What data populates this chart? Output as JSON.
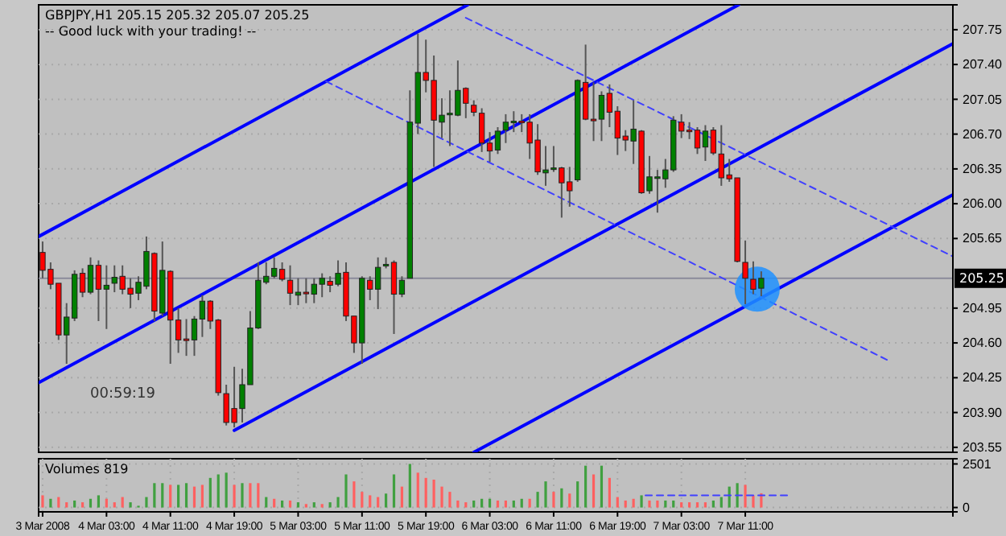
{
  "chart_data": [
    {
      "type": "candlestick",
      "title": "GBPJPY,H1  205.15 205.32 205.07 205.25",
      "subtitle": "-- Good luck with your trading! --",
      "annotations": [
        "00:59:19"
      ],
      "x": [
        "2008-03-03T19:00",
        "2008-03-03T20:00",
        "2008-03-03T21:00",
        "2008-03-03T22:00",
        "2008-03-03T23:00",
        "2008-03-04T00:00",
        "2008-03-04T01:00",
        "2008-03-04T02:00",
        "2008-03-04T03:00",
        "2008-03-04T04:00",
        "2008-03-04T05:00",
        "2008-03-04T06:00",
        "2008-03-04T07:00",
        "2008-03-04T08:00",
        "2008-03-04T09:00",
        "2008-03-04T10:00",
        "2008-03-04T11:00",
        "2008-03-04T12:00",
        "2008-03-04T13:00",
        "2008-03-04T14:00",
        "2008-03-04T15:00",
        "2008-03-04T16:00",
        "2008-03-04T17:00",
        "2008-03-04T18:00",
        "2008-03-04T19:00",
        "2008-03-04T20:00",
        "2008-03-04T21:00",
        "2008-03-04T22:00",
        "2008-03-04T23:00",
        "2008-03-05T00:00",
        "2008-03-05T01:00",
        "2008-03-05T02:00",
        "2008-03-05T03:00",
        "2008-03-05T04:00",
        "2008-03-05T05:00",
        "2008-03-05T06:00",
        "2008-03-05T07:00",
        "2008-03-05T08:00",
        "2008-03-05T09:00",
        "2008-03-05T10:00",
        "2008-03-05T11:00",
        "2008-03-05T12:00",
        "2008-03-05T13:00",
        "2008-03-05T14:00",
        "2008-03-05T15:00",
        "2008-03-05T16:00",
        "2008-03-05T17:00",
        "2008-03-05T18:00",
        "2008-03-05T19:00",
        "2008-03-05T20:00",
        "2008-03-05T21:00",
        "2008-03-05T22:00",
        "2008-03-05T23:00",
        "2008-03-06T00:00",
        "2008-03-06T01:00",
        "2008-03-06T02:00",
        "2008-03-06T03:00",
        "2008-03-06T04:00",
        "2008-03-06T05:00",
        "2008-03-06T06:00",
        "2008-03-06T07:00",
        "2008-03-06T08:00",
        "2008-03-06T09:00",
        "2008-03-06T10:00",
        "2008-03-06T11:00",
        "2008-03-06T12:00",
        "2008-03-06T13:00",
        "2008-03-06T14:00",
        "2008-03-06T15:00",
        "2008-03-06T16:00",
        "2008-03-06T17:00",
        "2008-03-06T18:00",
        "2008-03-06T19:00",
        "2008-03-06T20:00",
        "2008-03-06T21:00",
        "2008-03-06T22:00",
        "2008-03-06T23:00",
        "2008-03-07T00:00",
        "2008-03-07T01:00",
        "2008-03-07T02:00",
        "2008-03-07T03:00",
        "2008-03-07T04:00",
        "2008-03-07T05:00",
        "2008-03-07T06:00",
        "2008-03-07T07:00",
        "2008-03-07T08:00",
        "2008-03-07T09:00",
        "2008-03-07T10:00",
        "2008-03-07T11:00",
        "2008-03-07T12:00",
        "2008-03-07T13:00"
      ],
      "ohlc": [
        [
          205.51,
          205.62,
          205.25,
          205.33
        ],
        [
          205.34,
          205.41,
          205.14,
          205.19
        ],
        [
          205.2,
          205.2,
          204.63,
          204.68
        ],
        [
          204.68,
          205.0,
          204.39,
          204.86
        ],
        [
          204.85,
          205.33,
          204.82,
          205.29
        ],
        [
          205.3,
          205.35,
          205.06,
          205.11
        ],
        [
          205.11,
          205.46,
          205.09,
          205.38
        ],
        [
          205.38,
          205.43,
          204.82,
          205.14
        ],
        [
          205.14,
          205.38,
          204.74,
          205.18
        ],
        [
          205.2,
          205.38,
          205.11,
          205.26
        ],
        [
          205.27,
          205.38,
          205.09,
          205.14
        ],
        [
          205.15,
          205.25,
          204.95,
          205.09
        ],
        [
          205.1,
          205.27,
          205.03,
          205.21
        ],
        [
          205.17,
          205.67,
          205.14,
          205.52
        ],
        [
          205.5,
          205.51,
          204.82,
          204.92
        ],
        [
          204.9,
          205.62,
          204.87,
          205.33
        ],
        [
          205.32,
          205.33,
          204.39,
          204.83
        ],
        [
          204.83,
          204.95,
          204.5,
          204.63
        ],
        [
          204.64,
          204.84,
          204.47,
          204.63
        ],
        [
          204.63,
          204.87,
          204.47,
          204.84
        ],
        [
          204.84,
          205.08,
          204.66,
          205.02
        ],
        [
          205.02,
          205.03,
          204.74,
          204.82
        ],
        [
          204.83,
          204.84,
          204.07,
          204.1
        ],
        [
          204.09,
          204.18,
          203.77,
          203.8
        ],
        [
          203.94,
          204.36,
          203.75,
          203.8
        ],
        [
          203.94,
          204.34,
          203.8,
          204.18
        ],
        [
          204.18,
          204.92,
          204.18,
          204.75
        ],
        [
          204.75,
          205.41,
          204.74,
          205.23
        ],
        [
          205.21,
          205.41,
          205.19,
          205.27
        ],
        [
          205.27,
          205.46,
          205.25,
          205.35
        ],
        [
          205.34,
          205.41,
          205.22,
          205.24
        ],
        [
          205.23,
          205.38,
          204.98,
          205.1
        ],
        [
          205.08,
          205.25,
          204.98,
          205.11
        ],
        [
          205.11,
          205.25,
          205.0,
          205.1
        ],
        [
          205.09,
          205.25,
          205.0,
          205.19
        ],
        [
          205.19,
          205.3,
          205.06,
          205.25
        ],
        [
          205.22,
          205.27,
          205.11,
          205.18
        ],
        [
          205.19,
          205.43,
          205.17,
          205.3
        ],
        [
          205.31,
          205.41,
          204.82,
          204.87
        ],
        [
          204.87,
          204.87,
          204.5,
          204.6
        ],
        [
          204.6,
          205.27,
          204.39,
          205.25
        ],
        [
          205.23,
          205.27,
          205.03,
          205.14
        ],
        [
          205.14,
          205.46,
          204.94,
          205.36
        ],
        [
          205.38,
          205.46,
          205.35,
          205.39
        ],
        [
          205.41,
          205.43,
          204.69,
          205.09
        ],
        [
          205.09,
          205.27,
          205.06,
          205.23
        ],
        [
          205.25,
          207.14,
          205.25,
          206.82
        ],
        [
          206.81,
          207.71,
          206.7,
          207.32
        ],
        [
          207.32,
          207.65,
          207.12,
          207.24
        ],
        [
          207.24,
          207.49,
          206.37,
          206.84
        ],
        [
          206.82,
          207.06,
          206.66,
          206.89
        ],
        [
          206.9,
          207.14,
          206.58,
          206.91
        ],
        [
          206.89,
          207.44,
          206.88,
          207.14
        ],
        [
          207.16,
          207.17,
          206.86,
          207.01
        ],
        [
          206.99,
          207.04,
          206.88,
          206.92
        ],
        [
          206.91,
          206.96,
          206.52,
          206.61
        ],
        [
          206.61,
          206.72,
          206.42,
          206.53
        ],
        [
          206.54,
          206.77,
          206.5,
          206.73
        ],
        [
          206.74,
          206.9,
          206.61,
          206.82
        ],
        [
          206.82,
          206.93,
          206.72,
          206.83
        ],
        [
          206.83,
          206.9,
          206.72,
          206.82
        ],
        [
          206.82,
          206.9,
          206.45,
          206.61
        ],
        [
          206.64,
          206.8,
          206.29,
          206.32
        ],
        [
          206.31,
          206.58,
          206.18,
          206.34
        ],
        [
          206.35,
          206.58,
          206.32,
          206.36
        ],
        [
          206.36,
          206.37,
          205.86,
          206.21
        ],
        [
          206.22,
          206.37,
          205.97,
          206.13
        ],
        [
          206.24,
          207.25,
          206.22,
          207.24
        ],
        [
          207.22,
          207.6,
          206.84,
          206.85
        ],
        [
          206.85,
          207.22,
          206.63,
          206.84
        ],
        [
          206.85,
          207.13,
          206.63,
          207.09
        ],
        [
          207.11,
          207.2,
          206.77,
          206.92
        ],
        [
          206.93,
          206.98,
          206.49,
          206.66
        ],
        [
          206.68,
          206.74,
          206.53,
          206.64
        ],
        [
          206.63,
          207.04,
          206.4,
          206.75
        ],
        [
          206.73,
          206.74,
          206.1,
          206.11
        ],
        [
          206.13,
          206.48,
          206.1,
          206.27
        ],
        [
          206.26,
          206.34,
          205.91,
          206.27
        ],
        [
          206.25,
          206.45,
          206.16,
          206.34
        ],
        [
          206.34,
          206.88,
          206.32,
          206.84
        ],
        [
          206.82,
          206.9,
          206.66,
          206.73
        ],
        [
          206.74,
          206.82,
          206.65,
          206.73
        ],
        [
          206.74,
          206.77,
          206.5,
          206.56
        ],
        [
          206.57,
          206.79,
          206.43,
          206.73
        ],
        [
          206.74,
          206.77,
          206.49,
          206.51
        ],
        [
          206.5,
          206.79,
          206.18,
          206.26
        ],
        [
          206.29,
          206.45,
          206.22,
          206.25
        ],
        [
          206.26,
          206.26,
          205.41,
          205.42
        ],
        [
          205.41,
          205.63,
          204.99,
          205.25
        ],
        [
          205.24,
          205.42,
          205.09,
          205.14
        ],
        [
          205.15,
          205.32,
          205.07,
          205.25
        ]
      ],
      "colors": [
        "#ff0000",
        "#ff0000",
        "#ff0000",
        "#008000",
        "#008000",
        "#ff0000",
        "#008000",
        "#ff0000",
        "#008000",
        "#008000",
        "#ff0000",
        "#ff0000",
        "#008000",
        "#008000",
        "#ff0000",
        "#008000",
        "#ff0000",
        "#ff0000",
        "#ff0000",
        "#008000",
        "#008000",
        "#ff0000",
        "#ff0000",
        "#ff0000",
        "#ff0000",
        "#008000",
        "#008000",
        "#008000",
        "#008000",
        "#008000",
        "#ff0000",
        "#ff0000",
        "#008000",
        "#ff0000",
        "#008000",
        "#008000",
        "#ff0000",
        "#008000",
        "#ff0000",
        "#ff0000",
        "#008000",
        "#ff0000",
        "#008000",
        "#008000",
        "#ff0000",
        "#008000",
        "#008000",
        "#008000",
        "#ff0000",
        "#ff0000",
        "#008000",
        "#008000",
        "#008000",
        "#ff0000",
        "#ff0000",
        "#ff0000",
        "#ff0000",
        "#008000",
        "#008000",
        "#008000",
        "#ff0000",
        "#ff0000",
        "#ff0000",
        "#008000",
        "#008000",
        "#ff0000",
        "#ff0000",
        "#008000",
        "#ff0000",
        "#ff0000",
        "#008000",
        "#ff0000",
        "#ff0000",
        "#ff0000",
        "#008000",
        "#ff0000",
        "#008000",
        "#008000",
        "#008000",
        "#008000",
        "#ff0000",
        "#ff0000",
        "#ff0000",
        "#008000",
        "#ff0000",
        "#ff0000",
        "#ff0000",
        "#ff0000",
        "#ff0000",
        "#ff0000",
        "#008000"
      ],
      "series": [
        {
          "type": "line",
          "x": [
            "2008-03-03T18:30",
            "2008-03-06T00:15"
          ],
          "values": [
            205.67,
            208.0
          ],
          "color": "#0000ff",
          "line_style": "solid"
        },
        {
          "type": "line",
          "x": [
            "2008-03-03T18:30",
            "2008-03-07T10:10"
          ],
          "values": [
            204.2,
            208.0
          ],
          "color": "#0000ff",
          "line_style": "solid"
        },
        {
          "type": "line",
          "x": [
            "2008-03-04T19:00",
            "2008-03-08T13:00"
          ],
          "values": [
            203.72,
            207.61
          ],
          "color": "#0000ff",
          "line_style": "solid"
        },
        {
          "type": "line",
          "x": [
            "2008-03-06T01:00",
            "2008-03-08T13:00"
          ],
          "values": [
            203.5,
            206.09
          ],
          "color": "#0000ff",
          "line_style": "solid"
        },
        {
          "type": "line",
          "x": [
            "2008-03-06T00:00",
            "2008-03-08T13:00"
          ],
          "values": [
            207.87,
            205.47
          ],
          "color": "#4040ff",
          "line_style": "dashed"
        },
        {
          "type": "line",
          "x": [
            "2008-03-05T06:30",
            "2008-03-08T05:00"
          ],
          "values": [
            207.23,
            204.42
          ],
          "color": "#4040ff",
          "line_style": "dashed"
        }
      ],
      "xlim": [
        "2008-03-03T18:30",
        "2008-03-08T13:00"
      ],
      "ylim": [
        203.5,
        208.0
      ],
      "yticks": [
        207.75,
        {
          "value": 207.4,
          "label": "207.40"
        },
        207.05,
        {
          "value": 206.7,
          "label": "206.70"
        },
        206.35,
        {
          "value": 206.0,
          "label": "206.00"
        },
        205.65,
        204.95,
        {
          "value": 204.6,
          "label": "204.60"
        },
        204.25,
        {
          "value": 203.9,
          "label": "203.90"
        },
        203.55
      ],
      "tick_labels": "y",
      "grid": true,
      "ref_lines": [
        {
          "axis": "y",
          "value": 205.25,
          "label": "205.25",
          "color": "#8a8a9a"
        }
      ]
    },
    {
      "type": "bar",
      "title": "Volumes 819",
      "x": [
        "2008-03-03T19:00",
        "2008-03-03T20:00",
        "2008-03-03T21:00",
        "2008-03-03T22:00",
        "2008-03-03T23:00",
        "2008-03-04T00:00",
        "2008-03-04T01:00",
        "2008-03-04T02:00",
        "2008-03-04T03:00",
        "2008-03-04T04:00",
        "2008-03-04T05:00",
        "2008-03-04T06:00",
        "2008-03-04T07:00",
        "2008-03-04T08:00",
        "2008-03-04T09:00",
        "2008-03-04T10:00",
        "2008-03-04T11:00",
        "2008-03-04T12:00",
        "2008-03-04T13:00",
        "2008-03-04T14:00",
        "2008-03-04T15:00",
        "2008-03-04T16:00",
        "2008-03-04T17:00",
        "2008-03-04T18:00",
        "2008-03-04T19:00",
        "2008-03-04T20:00",
        "2008-03-04T21:00",
        "2008-03-04T22:00",
        "2008-03-04T23:00",
        "2008-03-05T00:00",
        "2008-03-05T01:00",
        "2008-03-05T02:00",
        "2008-03-05T03:00",
        "2008-03-05T04:00",
        "2008-03-05T05:00",
        "2008-03-05T06:00",
        "2008-03-05T07:00",
        "2008-03-05T08:00",
        "2008-03-05T09:00",
        "2008-03-05T10:00",
        "2008-03-05T11:00",
        "2008-03-05T12:00",
        "2008-03-05T13:00",
        "2008-03-05T14:00",
        "2008-03-05T15:00",
        "2008-03-05T16:00",
        "2008-03-05T17:00",
        "2008-03-05T18:00",
        "2008-03-05T19:00",
        "2008-03-05T20:00",
        "2008-03-05T21:00",
        "2008-03-05T22:00",
        "2008-03-05T23:00",
        "2008-03-06T00:00",
        "2008-03-06T01:00",
        "2008-03-06T02:00",
        "2008-03-06T03:00",
        "2008-03-06T04:00",
        "2008-03-06T05:00",
        "2008-03-06T06:00",
        "2008-03-06T07:00",
        "2008-03-06T08:00",
        "2008-03-06T09:00",
        "2008-03-06T10:00",
        "2008-03-06T11:00",
        "2008-03-06T12:00",
        "2008-03-06T13:00",
        "2008-03-06T14:00",
        "2008-03-06T15:00",
        "2008-03-06T16:00",
        "2008-03-06T17:00",
        "2008-03-06T18:00",
        "2008-03-06T19:00",
        "2008-03-06T20:00",
        "2008-03-06T21:00",
        "2008-03-06T22:00",
        "2008-03-06T23:00",
        "2008-03-07T00:00",
        "2008-03-07T01:00",
        "2008-03-07T02:00",
        "2008-03-07T03:00",
        "2008-03-07T04:00",
        "2008-03-07T05:00",
        "2008-03-07T06:00",
        "2008-03-07T07:00",
        "2008-03-07T08:00",
        "2008-03-07T09:00",
        "2008-03-07T10:00",
        "2008-03-07T11:00",
        "2008-03-07T12:00",
        "2008-03-07T13:00"
      ],
      "series": [
        {
          "type": "bar",
          "values": [
            700,
            500,
            600,
            300,
            400,
            300,
            500,
            700,
            500,
            300,
            600,
            300,
            100,
            600,
            1400,
            1400,
            1300,
            1300,
            1400,
            1200,
            1300,
            1700,
            1900,
            2000,
            1300,
            1400,
            1400,
            1400,
            600,
            500,
            400,
            400,
            300,
            200,
            300,
            200,
            300,
            600,
            1900,
            1500,
            900,
            700,
            600,
            800,
            1900,
            1200,
            2501,
            2000,
            1700,
            1600,
            1200,
            900,
            400,
            300,
            400,
            500,
            500,
            400,
            400,
            400,
            500,
            500,
            900,
            1500,
            900,
            1100,
            800,
            1500,
            2400,
            1900,
            2400,
            1700,
            600,
            400,
            500,
            700,
            400,
            400,
            400,
            400,
            300,
            300,
            300,
            300,
            400,
            600,
            1200,
            1400,
            1300,
            700,
            819
          ],
          "colors": [
            "#ff6060",
            "#40a040",
            "#ff6060",
            "#ff6060",
            "#40a040",
            "#ff6060",
            "#40a040",
            "#40a040",
            "#ff6060",
            "#ff6060",
            "#ff6060",
            "#40a040",
            "#40a040",
            "#40a040",
            "#40a040",
            "#40a040",
            "#ff6060",
            "#40a040",
            "#40a040",
            "#ff6060",
            "#ff6060",
            "#40a040",
            "#40a040",
            "#40a040",
            "#ff6060",
            "#40a040",
            "#ff6060",
            "#ff6060",
            "#40a040",
            "#ff6060",
            "#40a040",
            "#ff6060",
            "#40a040",
            "#ff6060",
            "#40a040",
            "#ff6060",
            "#40a040",
            "#40a040",
            "#40a040",
            "#ff6060",
            "#ff6060",
            "#ff6060",
            "#ff6060",
            "#40a040",
            "#40a040",
            "#ff6060",
            "#40a040",
            "#ff6060",
            "#ff6060",
            "#ff6060",
            "#ff6060",
            "#ff6060",
            "#ff6060",
            "#ff6060",
            "#40a040",
            "#40a040",
            "#40a040",
            "#ff6060",
            "#ff6060",
            "#40a040",
            "#40a040",
            "#ff6060",
            "#40a040",
            "#40a040",
            "#ff6060",
            "#40a040",
            "#ff6060",
            "#40a040",
            "#40a040",
            "#ff6060",
            "#40a040",
            "#ff6060",
            "#ff6060",
            "#ff6060",
            "#ff6060",
            "#40a040",
            "#ff6060",
            "#ff6060",
            "#40a040",
            "#40a040",
            "#ff6060",
            "#ff6060",
            "#ff6060",
            "#ff6060",
            "#40a040",
            "#40a040",
            "#40a040",
            "#40a040",
            "#ff6060",
            "#ff6060",
            "#ff6060"
          ]
        },
        {
          "type": "line",
          "x": [
            "2008-03-06T22:30",
            "2008-03-07T16:20"
          ],
          "values": [
            700,
            700
          ],
          "color": "#4040ff",
          "line_style": "dashed"
        }
      ],
      "xlim": [
        "2008-03-03T18:30",
        "2008-03-08T13:00"
      ],
      "ylim": [
        -250,
        2800
      ],
      "xticks": [
        {
          "value": "2008-03-03T19:00",
          "label": "3 Mar 2008"
        },
        {
          "value": "2008-03-04T03:00",
          "label": "4 Mar 03:00"
        },
        {
          "value": "2008-03-04T11:00",
          "label": "4 Mar 11:00"
        },
        {
          "value": "2008-03-04T19:00",
          "label": "4 Mar 19:00"
        },
        {
          "value": "2008-03-05T03:00",
          "label": "5 Mar 03:00"
        },
        {
          "value": "2008-03-05T11:00",
          "label": "5 Mar 11:00"
        },
        {
          "value": "2008-03-05T19:00",
          "label": "5 Mar 19:00"
        },
        {
          "value": "2008-03-06T03:00",
          "label": "6 Mar 03:00"
        },
        {
          "value": "2008-03-06T11:00",
          "label": "6 Mar 11:00"
        },
        {
          "value": "2008-03-06T19:00",
          "label": "6 Mar 19:00"
        },
        {
          "value": "2008-03-07T03:00",
          "label": "7 Mar 03:00"
        },
        {
          "value": "2008-03-07T11:00",
          "label": "7 Mar 11:00"
        }
      ],
      "yticks": [
        0,
        2501
      ],
      "grid": true
    }
  ]
}
